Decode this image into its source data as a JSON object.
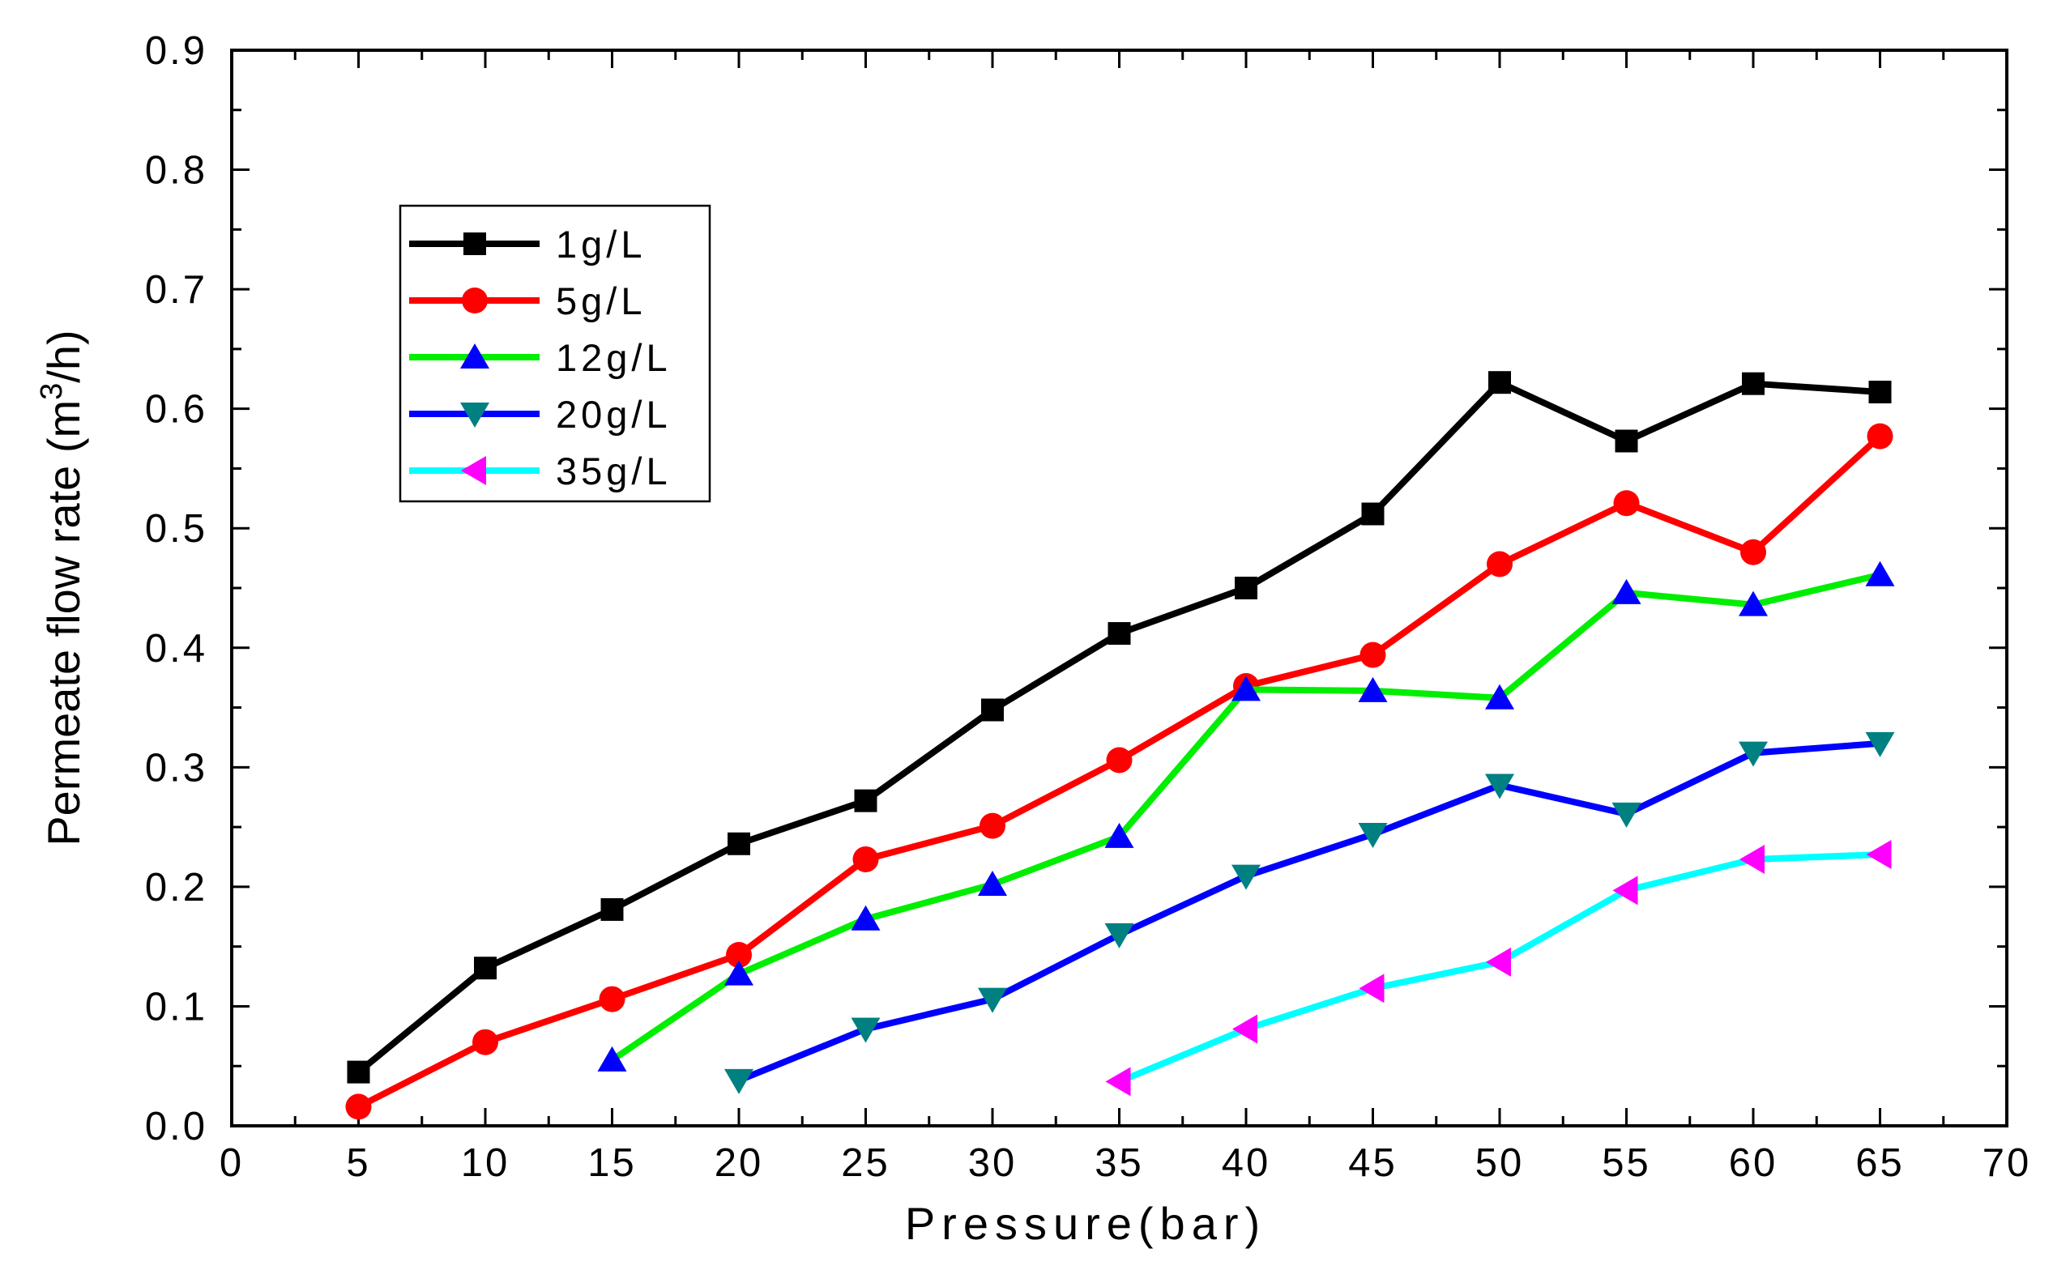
{
  "chart_data": {
    "type": "line",
    "title": "",
    "xlabel": "Pressure(bar)",
    "ylabel": "Permeate flow rate (m",
    "ylabel_superscript": "3",
    "ylabel_suffix": "/h)",
    "xlim": [
      0,
      70
    ],
    "ylim": [
      0.0,
      0.9
    ],
    "x_ticks": [
      "0",
      "5",
      "10",
      "15",
      "20",
      "25",
      "30",
      "35",
      "40",
      "45",
      "50",
      "55",
      "60",
      "65",
      "70"
    ],
    "y_ticks": [
      "0.0",
      "0.1",
      "0.2",
      "0.3",
      "0.4",
      "0.5",
      "0.6",
      "0.7",
      "0.8",
      "0.9"
    ],
    "grid": false,
    "legend_position": "top-left",
    "series": [
      {
        "name": "1g/L",
        "line_color": "#000000",
        "marker": "square",
        "marker_color": "#000000",
        "x": [
          5,
          10,
          15,
          20,
          25,
          30,
          35,
          40,
          45,
          50,
          55,
          60,
          65
        ],
        "values": [
          0.045,
          0.132,
          0.181,
          0.236,
          0.272,
          0.348,
          0.412,
          0.45,
          0.512,
          0.622,
          0.573,
          0.621,
          0.614
        ]
      },
      {
        "name": "5g/L",
        "line_color": "#ff0000",
        "marker": "circle",
        "marker_color": "#ff0000",
        "x": [
          5,
          10,
          15,
          20,
          25,
          30,
          35,
          40,
          45,
          50,
          55,
          60,
          65
        ],
        "values": [
          0.016,
          0.07,
          0.106,
          0.143,
          0.223,
          0.251,
          0.306,
          0.368,
          0.394,
          0.47,
          0.521,
          0.48,
          0.577
        ]
      },
      {
        "name": "12g/L",
        "line_color": "#00ee00",
        "marker": "triangle-up",
        "marker_color": "#0000ff",
        "x": [
          15,
          20,
          25,
          30,
          35,
          40,
          45,
          50,
          55,
          60,
          65
        ],
        "values": [
          0.055,
          0.127,
          0.173,
          0.202,
          0.242,
          0.365,
          0.364,
          0.358,
          0.446,
          0.436,
          0.461
        ]
      },
      {
        "name": "20g/L",
        "line_color": "#0000ff",
        "marker": "triangle-down",
        "marker_color": "#008080",
        "x": [
          20,
          25,
          30,
          35,
          40,
          45,
          50,
          55,
          60,
          65
        ],
        "values": [
          0.038,
          0.081,
          0.106,
          0.16,
          0.209,
          0.244,
          0.285,
          0.261,
          0.312,
          0.32
        ]
      },
      {
        "name": "35g/L",
        "line_color": "#00ffff",
        "marker": "triangle-left",
        "marker_color": "#ff00ff",
        "x": [
          35,
          40,
          45,
          50,
          55,
          60,
          65
        ],
        "values": [
          0.037,
          0.081,
          0.115,
          0.137,
          0.197,
          0.223,
          0.227
        ]
      }
    ]
  }
}
